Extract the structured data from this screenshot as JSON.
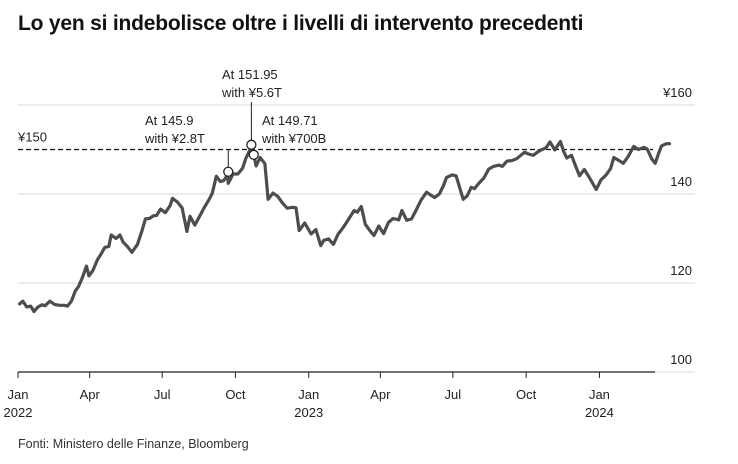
{
  "title": "Lo yen si indebolisce oltre i livelli di intervento precedenti",
  "source": "Fonti: Ministero delle Finanze, Bloomberg",
  "colors": {
    "line": "#4d4d4d",
    "grid": "#d9d9d9",
    "axis": "#222222",
    "text": "#222222"
  },
  "chart_data": {
    "type": "line",
    "title": "Lo yen si indebolisce oltre i livelli di intervento precedenti",
    "xlabel": "",
    "ylabel": "",
    "ylim": [
      100,
      160
    ],
    "xlim": [
      "2022-01-01",
      "2024-04-30"
    ],
    "y_ticks": [
      {
        "value": 160,
        "label": "¥160"
      },
      {
        "value": 140,
        "label": "140"
      },
      {
        "value": 120,
        "label": "120"
      },
      {
        "value": 100,
        "label": "100"
      }
    ],
    "x_ticks": [
      {
        "date": "2022-01-01",
        "month": "Jan",
        "year": "2022"
      },
      {
        "date": "2022-04-01",
        "month": "Apr",
        "year": ""
      },
      {
        "date": "2022-07-01",
        "month": "Jul",
        "year": ""
      },
      {
        "date": "2022-10-01",
        "month": "Oct",
        "year": ""
      },
      {
        "date": "2023-01-01",
        "month": "Jan",
        "year": "2023"
      },
      {
        "date": "2023-04-01",
        "month": "Apr",
        "year": ""
      },
      {
        "date": "2023-07-01",
        "month": "Jul",
        "year": ""
      },
      {
        "date": "2023-10-01",
        "month": "Oct",
        "year": ""
      },
      {
        "date": "2024-01-01",
        "month": "Jan",
        "year": "2024"
      }
    ],
    "reference_line": {
      "value": 150,
      "label": "¥150",
      "style": "dashed"
    },
    "grid": true,
    "annotations": [
      {
        "date": "2022-09-22",
        "value": 145.9,
        "line1": "At 145.9",
        "line2": "with ¥2.8T"
      },
      {
        "date": "2022-10-21",
        "value": 151.95,
        "line1": "At 151.95",
        "line2": "with ¥5.6T"
      },
      {
        "date": "2022-10-24",
        "value": 149.71,
        "line1": "At 149.71",
        "line2": "with ¥700B"
      }
    ],
    "series": [
      {
        "points": [
          [
            "2022-01-03",
            115.3
          ],
          [
            "2022-01-07",
            115.9
          ],
          [
            "2022-01-12",
            114.6
          ],
          [
            "2022-01-17",
            114.8
          ],
          [
            "2022-01-21",
            113.6
          ],
          [
            "2022-01-26",
            114.6
          ],
          [
            "2022-01-31",
            115.1
          ],
          [
            "2022-02-04",
            114.9
          ],
          [
            "2022-02-10",
            115.9
          ],
          [
            "2022-02-16",
            115.2
          ],
          [
            "2022-02-22",
            115.0
          ],
          [
            "2022-02-28",
            115.0
          ],
          [
            "2022-03-04",
            114.8
          ],
          [
            "2022-03-09",
            115.9
          ],
          [
            "2022-03-14",
            118.2
          ],
          [
            "2022-03-18",
            119.2
          ],
          [
            "2022-03-23",
            121.3
          ],
          [
            "2022-03-28",
            123.8
          ],
          [
            "2022-03-31",
            121.6
          ],
          [
            "2022-04-05",
            122.8
          ],
          [
            "2022-04-11",
            125.3
          ],
          [
            "2022-04-15",
            126.4
          ],
          [
            "2022-04-20",
            128.0
          ],
          [
            "2022-04-25",
            128.2
          ],
          [
            "2022-04-28",
            130.8
          ],
          [
            "2022-05-04",
            130.0
          ],
          [
            "2022-05-09",
            130.8
          ],
          [
            "2022-05-13",
            129.2
          ],
          [
            "2022-05-18",
            128.3
          ],
          [
            "2022-05-24",
            126.9
          ],
          [
            "2022-05-31",
            128.7
          ],
          [
            "2022-06-06",
            131.9
          ],
          [
            "2022-06-10",
            134.4
          ],
          [
            "2022-06-15",
            134.5
          ],
          [
            "2022-06-20",
            135.1
          ],
          [
            "2022-06-24",
            135.2
          ],
          [
            "2022-06-29",
            136.6
          ],
          [
            "2022-07-05",
            135.8
          ],
          [
            "2022-07-11",
            137.4
          ],
          [
            "2022-07-14",
            139.0
          ],
          [
            "2022-07-20",
            138.2
          ],
          [
            "2022-07-26",
            136.9
          ],
          [
            "2022-08-01",
            131.6
          ],
          [
            "2022-08-05",
            135.0
          ],
          [
            "2022-08-11",
            133.0
          ],
          [
            "2022-08-17",
            135.0
          ],
          [
            "2022-08-23",
            137.0
          ],
          [
            "2022-08-29",
            138.8
          ],
          [
            "2022-09-02",
            140.2
          ],
          [
            "2022-09-07",
            144.0
          ],
          [
            "2022-09-12",
            142.8
          ],
          [
            "2022-09-16",
            143.0
          ],
          [
            "2022-09-21",
            144.2
          ],
          [
            "2022-09-22",
            142.4
          ],
          [
            "2022-09-28",
            144.5
          ],
          [
            "2022-10-04",
            144.5
          ],
          [
            "2022-10-10",
            145.8
          ],
          [
            "2022-10-14",
            148.0
          ],
          [
            "2022-10-20",
            150.2
          ],
          [
            "2022-10-21",
            151.9
          ],
          [
            "2022-10-24",
            148.9
          ],
          [
            "2022-10-27",
            146.3
          ],
          [
            "2022-11-01",
            148.2
          ],
          [
            "2022-11-07",
            146.8
          ],
          [
            "2022-11-11",
            138.8
          ],
          [
            "2022-11-17",
            140.2
          ],
          [
            "2022-11-23",
            139.5
          ],
          [
            "2022-11-29",
            138.0
          ],
          [
            "2022-12-05",
            136.8
          ],
          [
            "2022-12-12",
            137.0
          ],
          [
            "2022-12-16",
            136.9
          ],
          [
            "2022-12-20",
            131.8
          ],
          [
            "2022-12-27",
            133.5
          ],
          [
            "2023-01-04",
            131.0
          ],
          [
            "2023-01-10",
            132.0
          ],
          [
            "2023-01-16",
            128.4
          ],
          [
            "2023-01-20",
            129.6
          ],
          [
            "2023-01-26",
            129.9
          ],
          [
            "2023-02-01",
            128.7
          ],
          [
            "2023-02-07",
            131.0
          ],
          [
            "2023-02-13",
            132.4
          ],
          [
            "2023-02-20",
            134.3
          ],
          [
            "2023-02-27",
            136.3
          ],
          [
            "2023-03-03",
            135.9
          ],
          [
            "2023-03-08",
            137.2
          ],
          [
            "2023-03-13",
            133.2
          ],
          [
            "2023-03-20",
            131.5
          ],
          [
            "2023-03-24",
            130.7
          ],
          [
            "2023-03-30",
            132.8
          ],
          [
            "2023-04-05",
            131.1
          ],
          [
            "2023-04-11",
            133.6
          ],
          [
            "2023-04-17",
            134.5
          ],
          [
            "2023-04-24",
            134.2
          ],
          [
            "2023-04-28",
            136.3
          ],
          [
            "2023-05-04",
            134.1
          ],
          [
            "2023-05-10",
            134.4
          ],
          [
            "2023-05-16",
            136.4
          ],
          [
            "2023-05-22",
            138.6
          ],
          [
            "2023-05-29",
            140.4
          ],
          [
            "2023-06-02",
            139.9
          ],
          [
            "2023-06-08",
            139.2
          ],
          [
            "2023-06-14",
            140.0
          ],
          [
            "2023-06-19",
            141.8
          ],
          [
            "2023-06-23",
            143.7
          ],
          [
            "2023-06-30",
            144.3
          ],
          [
            "2023-07-05",
            144.1
          ],
          [
            "2023-07-10",
            141.2
          ],
          [
            "2023-07-14",
            138.8
          ],
          [
            "2023-07-19",
            139.6
          ],
          [
            "2023-07-24",
            141.5
          ],
          [
            "2023-07-28",
            141.2
          ],
          [
            "2023-08-03",
            142.5
          ],
          [
            "2023-08-09",
            143.6
          ],
          [
            "2023-08-15",
            145.6
          ],
          [
            "2023-08-21",
            146.2
          ],
          [
            "2023-08-28",
            146.5
          ],
          [
            "2023-09-01",
            146.2
          ],
          [
            "2023-09-07",
            147.4
          ],
          [
            "2023-09-13",
            147.5
          ],
          [
            "2023-09-19",
            147.9
          ],
          [
            "2023-09-25",
            148.8
          ],
          [
            "2023-09-29",
            149.4
          ],
          [
            "2023-10-04",
            149.0
          ],
          [
            "2023-10-10",
            148.7
          ],
          [
            "2023-10-16",
            149.5
          ],
          [
            "2023-10-20",
            149.9
          ],
          [
            "2023-10-26",
            150.4
          ],
          [
            "2023-10-31",
            151.7
          ],
          [
            "2023-11-06",
            149.9
          ],
          [
            "2023-11-13",
            151.8
          ],
          [
            "2023-11-17",
            149.6
          ],
          [
            "2023-11-21",
            148.1
          ],
          [
            "2023-11-27",
            148.7
          ],
          [
            "2023-12-01",
            146.8
          ],
          [
            "2023-12-07",
            144.1
          ],
          [
            "2023-12-13",
            145.5
          ],
          [
            "2023-12-19",
            143.8
          ],
          [
            "2023-12-28",
            141.0
          ],
          [
            "2024-01-03",
            143.2
          ],
          [
            "2024-01-09",
            144.2
          ],
          [
            "2024-01-15",
            145.7
          ],
          [
            "2024-01-19",
            148.2
          ],
          [
            "2024-01-25",
            147.6
          ],
          [
            "2024-01-31",
            146.9
          ],
          [
            "2024-02-06",
            148.4
          ],
          [
            "2024-02-13",
            150.7
          ],
          [
            "2024-02-19",
            150.0
          ],
          [
            "2024-02-26",
            150.5
          ],
          [
            "2024-03-01",
            150.1
          ],
          [
            "2024-03-07",
            147.8
          ],
          [
            "2024-03-11",
            146.9
          ],
          [
            "2024-03-15",
            149.0
          ],
          [
            "2024-03-19",
            150.8
          ],
          [
            "2024-03-25",
            151.3
          ],
          [
            "2024-03-29",
            151.3
          ]
        ]
      }
    ]
  }
}
